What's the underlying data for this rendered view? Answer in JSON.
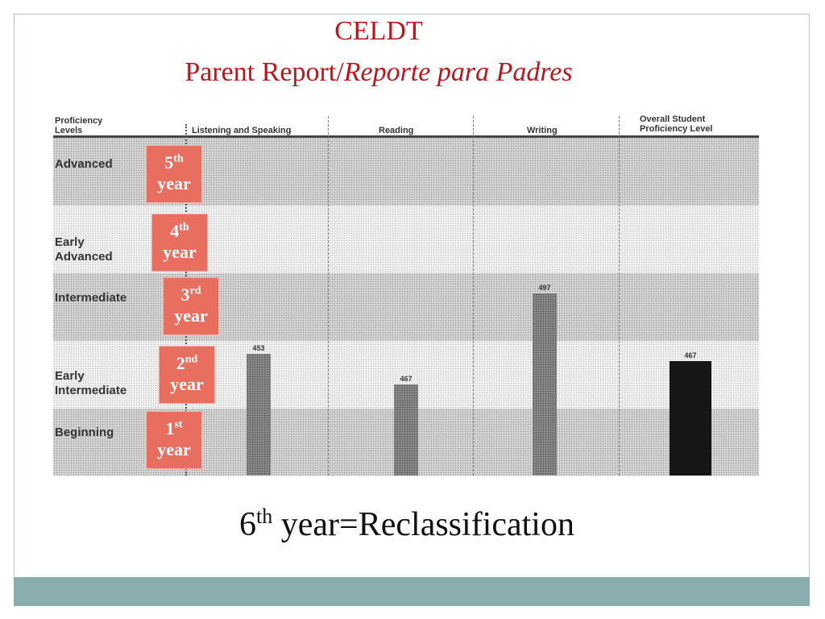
{
  "title": {
    "line1": "CELDT",
    "line2_plain": "Parent Report/",
    "line2_italic": "Reporte para Padres"
  },
  "report_headers": {
    "levels": "Proficiency Levels",
    "listening": "Listening and Speaking",
    "reading": "Reading",
    "writing": "Writing",
    "overall": "Overall Student Proficiency Level"
  },
  "levels": [
    "Advanced",
    "Early Advanced",
    "Intermediate",
    "Early Intermediate",
    "Beginning"
  ],
  "year_boxes": [
    {
      "num": "5",
      "suffix": "th",
      "word": "year"
    },
    {
      "num": "4",
      "suffix": "th",
      "word": "year"
    },
    {
      "num": "3",
      "suffix": "rd",
      "word": "year"
    },
    {
      "num": "2",
      "suffix": "nd",
      "word": "year"
    },
    {
      "num": "1",
      "suffix": "st",
      "word": "year"
    }
  ],
  "footer": {
    "num": "6",
    "suffix": "th",
    "text": " year=Reclassification"
  },
  "colors": {
    "title": "#c0141c",
    "year_box": "#e86f5f",
    "footer_bar": "#8aaeae"
  },
  "chart_data": {
    "type": "bar",
    "categories": [
      "Listening and Speaking",
      "Reading",
      "Writing",
      "Overall Student Proficiency Level"
    ],
    "values": [
      453,
      467,
      497,
      467
    ],
    "value_labels": [
      "453",
      "467",
      "497",
      "467"
    ],
    "y_bands": [
      "Beginning",
      "Early Intermediate",
      "Intermediate",
      "Early Advanced",
      "Advanced"
    ],
    "y_band_top_value": 0.875,
    "bar_top_fraction_of_chart": [
      0.36,
      0.27,
      0.54,
      0.34
    ]
  }
}
